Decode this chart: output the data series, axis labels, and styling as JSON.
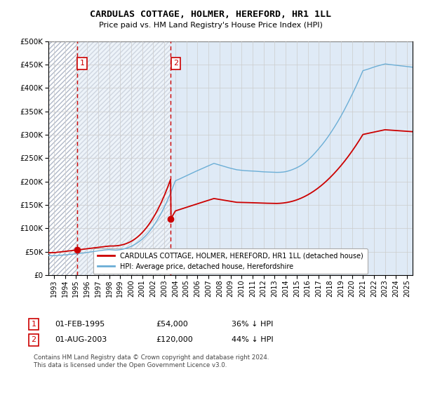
{
  "title": "CARDULAS COTTAGE, HOLMER, HEREFORD, HR1 1LL",
  "subtitle": "Price paid vs. HM Land Registry's House Price Index (HPI)",
  "legend_line1": "CARDULAS COTTAGE, HOLMER, HEREFORD, HR1 1LL (detached house)",
  "legend_line2": "HPI: Average price, detached house, Herefordshire",
  "footer": "Contains HM Land Registry data © Crown copyright and database right 2024.\nThis data is licensed under the Open Government Licence v3.0.",
  "sale1_date": 1995.08,
  "sale1_price": 54000,
  "sale2_date": 2003.58,
  "sale2_price": 120000,
  "hpi_color": "#6baed6",
  "sale_color": "#cc0000",
  "marker_color": "#cc0000",
  "dashed_line_color": "#cc0000",
  "ylim": [
    0,
    500000
  ],
  "xlim_start": 1992.5,
  "xlim_end": 2025.5,
  "yticks": [
    0,
    50000,
    100000,
    150000,
    200000,
    250000,
    300000,
    350000,
    400000,
    450000,
    500000
  ],
  "ytick_labels": [
    "£0",
    "£50K",
    "£100K",
    "£150K",
    "£200K",
    "£250K",
    "£300K",
    "£350K",
    "£400K",
    "£450K",
    "£500K"
  ],
  "xticks": [
    1993,
    1994,
    1995,
    1996,
    1997,
    1998,
    1999,
    2000,
    2001,
    2002,
    2003,
    2004,
    2005,
    2006,
    2007,
    2008,
    2009,
    2010,
    2011,
    2012,
    2013,
    2014,
    2015,
    2016,
    2017,
    2018,
    2019,
    2020,
    2021,
    2022,
    2023,
    2024,
    2025
  ],
  "background_plain_color": "#dce8f5",
  "hatch_color": "#b0b8c8"
}
